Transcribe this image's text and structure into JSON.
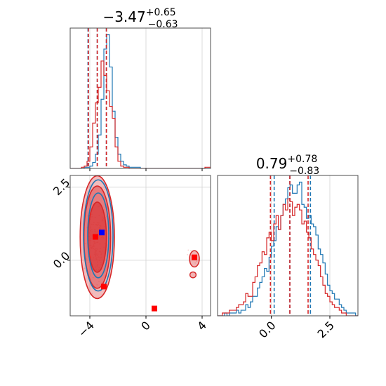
{
  "chart_data": [
    {
      "type": "step-histogram",
      "panel": "top-left",
      "title": {
        "main": "−3.47",
        "sup": "+0.65",
        "sub": "−0.63"
      },
      "xlim": [
        -5.4,
        4.6
      ],
      "grid": true,
      "series": [
        {
          "color": "#1f77b4",
          "x_start": -5.4,
          "bin_width": 0.2,
          "counts": [
            0,
            0,
            0,
            0,
            0,
            1,
            1,
            2,
            5,
            12,
            28,
            58,
            100,
            112,
            85,
            48,
            26,
            12,
            6,
            3,
            2,
            1,
            1,
            1,
            1,
            0,
            0,
            0,
            0,
            0,
            0,
            0,
            0,
            0,
            0,
            0,
            0,
            0,
            0,
            0,
            0,
            0,
            0,
            0,
            0,
            0,
            0,
            0,
            0,
            0
          ],
          "quantiles": [
            -4.13,
            -3.47,
            -2.82
          ]
        },
        {
          "color": "#d62728",
          "x_start": -5.4,
          "bin_width": 0.2,
          "counts": [
            0,
            0,
            0,
            0,
            1,
            2,
            6,
            18,
            38,
            55,
            68,
            90,
            78,
            65,
            52,
            42,
            18,
            6,
            2,
            1,
            1,
            0,
            0,
            0,
            0,
            0,
            0,
            0,
            0,
            0,
            0,
            0,
            0,
            0,
            0,
            0,
            0,
            0,
            0,
            0,
            0,
            0,
            0,
            0,
            0,
            0,
            0,
            0,
            1,
            1
          ],
          "quantiles": [
            -4.1,
            -3.47,
            -2.82
          ]
        }
      ],
      "x_tick_labels": []
    },
    {
      "type": "contour",
      "panel": "bottom-left",
      "xlim": [
        -5.4,
        4.6
      ],
      "ylim": [
        -1.9,
        2.9
      ],
      "x_ticks": [
        -4,
        0,
        4
      ],
      "x_tick_labels": [
        "−4",
        "0",
        "4"
      ],
      "y_ticks": [
        0.0,
        2.5
      ],
      "y_tick_labels": [
        "0.0",
        "2.5"
      ],
      "grid": true,
      "contours": [
        {
          "color": "#d62728",
          "levels": [
            {
              "cx": -3.47,
              "cy": 0.79,
              "rx": 1.22,
              "ry": 2.1,
              "fill_opacity": 0.45
            },
            {
              "cx": -3.47,
              "cy": 0.79,
              "rx": 0.95,
              "ry": 1.75,
              "fill_opacity": 0.6
            },
            {
              "cx": -3.47,
              "cy": 0.79,
              "rx": 0.65,
              "ry": 1.2,
              "fill_opacity": 0.85
            }
          ]
        },
        {
          "color": "#1f77b4",
          "levels": [
            {
              "cx": -3.4,
              "cy": 0.85,
              "rx": 1.05,
              "ry": 1.9
            },
            {
              "cx": -3.4,
              "cy": 0.85,
              "rx": 0.75,
              "ry": 1.45
            }
          ]
        }
      ],
      "islands": [
        {
          "color": "#d62728",
          "cx": 3.45,
          "cy": 0.05,
          "rx": 0.35,
          "ry": 0.28
        },
        {
          "color": "#d62728",
          "cx": 3.35,
          "cy": -0.5,
          "rx": 0.22,
          "ry": 0.1
        }
      ],
      "markers": [
        {
          "color": "#0000ff",
          "x": -3.15,
          "y": 0.95
        },
        {
          "color": "#ff0000",
          "x": -3.6,
          "y": 0.8
        },
        {
          "color": "#ff0000",
          "x": -3.0,
          "y": -0.9
        },
        {
          "color": "#ff0000",
          "x": 0.6,
          "y": -1.65
        },
        {
          "color": "#ff0000",
          "x": 3.45,
          "y": 0.1
        }
      ]
    },
    {
      "type": "step-histogram",
      "panel": "bottom-right",
      "title": {
        "main": "0.79",
        "sup": "+0.78",
        "sub": "−0.83"
      },
      "xlim": [
        -2.3,
        3.7
      ],
      "x_ticks": [
        0.0,
        2.5
      ],
      "x_tick_labels": [
        "0.0",
        "2.5"
      ],
      "grid": true,
      "series": [
        {
          "color": "#1f77b4",
          "x_start": -2.3,
          "bin_width": 0.1,
          "counts": [
            0,
            0,
            0,
            1,
            0,
            1,
            1,
            1,
            2,
            1,
            2,
            2,
            4,
            3,
            5,
            7,
            7,
            10,
            12,
            14,
            17,
            16,
            21,
            25,
            27,
            32,
            31,
            36,
            40,
            42,
            46,
            47,
            44,
            44,
            47,
            48,
            40,
            39,
            35,
            36,
            33,
            32,
            29,
            24,
            22,
            19,
            15,
            11,
            9,
            8,
            6,
            6,
            4,
            3,
            2,
            1,
            1,
            1,
            1,
            0
          ],
          "quantiles": [
            0.12,
            0.79,
            1.67
          ]
        },
        {
          "color": "#d62728",
          "x_start": -2.3,
          "bin_width": 0.1,
          "counts": [
            0,
            0,
            1,
            1,
            1,
            2,
            2,
            2,
            3,
            4,
            4,
            5,
            8,
            7,
            7,
            12,
            14,
            18,
            19,
            23,
            22,
            28,
            30,
            27,
            33,
            36,
            31,
            36,
            40,
            38,
            42,
            41,
            36,
            39,
            40,
            38,
            33,
            34,
            30,
            28,
            24,
            22,
            20,
            18,
            14,
            11,
            8,
            7,
            5,
            4,
            3,
            3,
            2,
            1,
            1,
            0,
            0,
            0,
            0,
            0
          ],
          "quantiles": [
            -0.04,
            0.79,
            1.57
          ]
        }
      ]
    }
  ]
}
